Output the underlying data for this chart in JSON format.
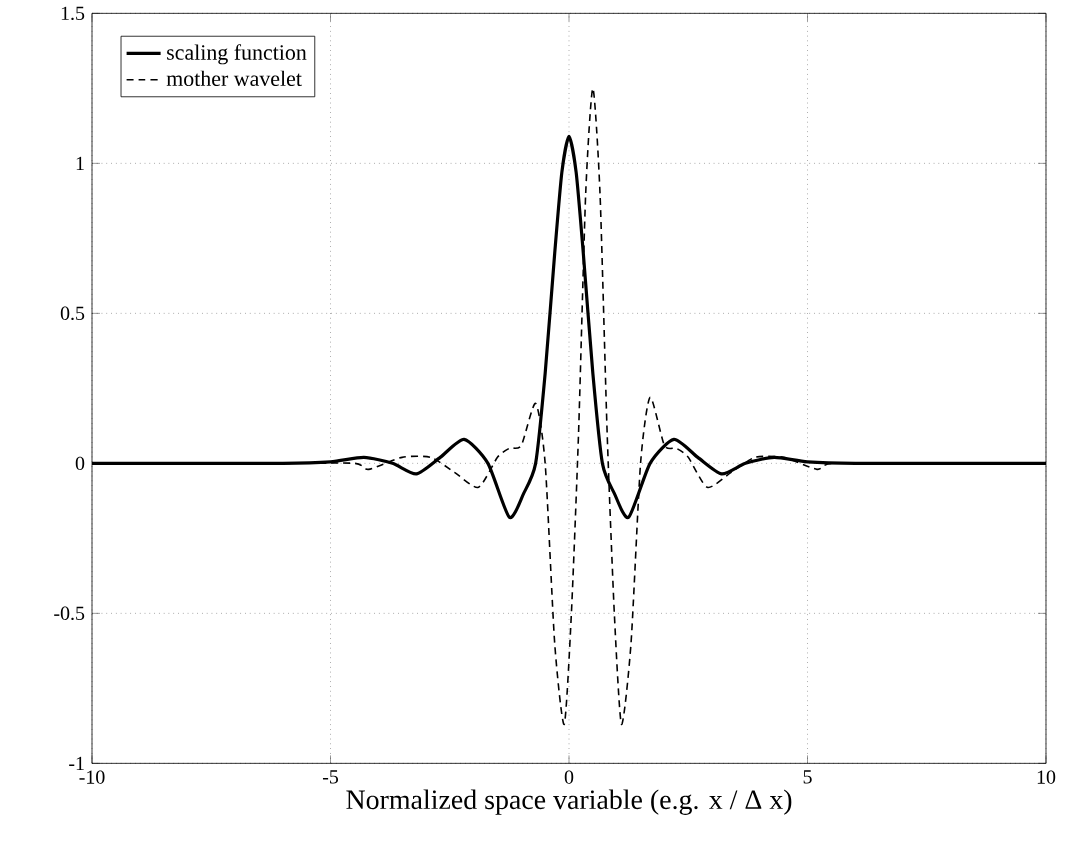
{
  "chart_data": {
    "type": "line",
    "xlabel": "Normalized space variable (e.g. x / Δ x)",
    "xlim": [
      -10,
      10
    ],
    "ylim": [
      -1,
      1.5
    ],
    "xticks": [
      -10,
      -5,
      0,
      5,
      10
    ],
    "yticks": [
      -1,
      -0.5,
      0,
      0.5,
      1,
      1.5
    ],
    "grid": true,
    "legend": "top left",
    "marker": "none",
    "series": [
      {
        "name": "scaling function",
        "color": "#000000",
        "line_style": "solid",
        "x": [
          -10,
          -6,
          -5,
          -4.3,
          -3.7,
          -3.2,
          -2.7,
          -2.2,
          -1.7,
          -1.25,
          -0.95,
          -0.7,
          -0.5,
          -0.3,
          -0.15,
          0,
          0.15,
          0.3,
          0.5,
          0.7,
          0.95,
          1.25,
          1.7,
          2.2,
          2.7,
          3.2,
          3.7,
          4.3,
          5,
          6,
          10
        ],
        "values": [
          0,
          0,
          0.005,
          0.02,
          0,
          -0.035,
          0.02,
          0.08,
          0,
          -0.18,
          -0.1,
          0,
          0.3,
          0.7,
          0.97,
          1.09,
          0.97,
          0.7,
          0.3,
          0,
          -0.1,
          -0.18,
          0,
          0.08,
          0.02,
          -0.035,
          0,
          0.02,
          0.005,
          0,
          0
        ]
      },
      {
        "name": "mother wavelet",
        "color": "#000000",
        "line_style": "dashed",
        "x": [
          -10,
          -6,
          -4.5,
          -4.2,
          -3.5,
          -2.9,
          -2.4,
          -1.9,
          -1.5,
          -1.25,
          -1.0,
          -0.7,
          -0.5,
          -0.3,
          -0.1,
          0.05,
          0.2,
          0.35,
          0.5,
          0.65,
          0.8,
          0.95,
          1.1,
          1.3,
          1.5,
          1.7,
          2.0,
          2.25,
          2.5,
          2.9,
          3.4,
          3.9,
          4.5,
          5.2,
          5.5,
          7,
          10
        ],
        "values": [
          0,
          0,
          0,
          -0.02,
          0.02,
          0.02,
          -0.03,
          -0.08,
          0.02,
          0.05,
          0.06,
          0.2,
          0,
          -0.6,
          -0.87,
          -0.5,
          0.1,
          0.9,
          1.25,
          0.9,
          0.1,
          -0.5,
          -0.87,
          -0.6,
          0,
          0.22,
          0.06,
          0.05,
          0.02,
          -0.08,
          -0.03,
          0.02,
          0.02,
          -0.02,
          0,
          0,
          0
        ]
      }
    ]
  }
}
